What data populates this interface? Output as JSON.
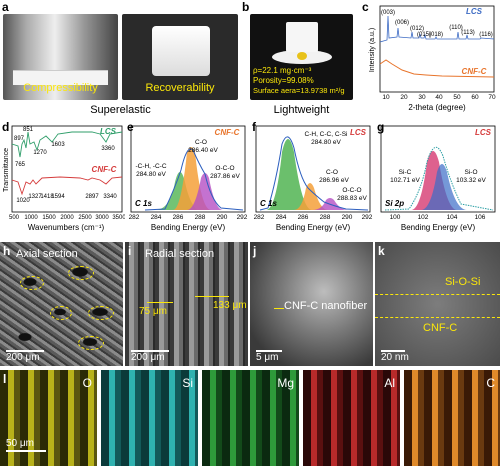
{
  "panels": {
    "a": {
      "label": "a",
      "left_caption": "Compressibility",
      "right_caption": "Recoverability",
      "group_caption": "Superelastic"
    },
    "b": {
      "label": "b",
      "line1": "ρ=22.1 mg·cm⁻³",
      "line2": "Porosity=99.08%",
      "line3": "Surface aera=13.9738 m²/g",
      "group_caption": "Lightweight"
    },
    "c": {
      "label": "c",
      "legend_top": "LCS",
      "legend_bottom": "CNF-C",
      "xlabel": "2-theta (degree)",
      "ylabel": "Intensity (a.u.)",
      "peaks": [
        "(003)",
        "(006)",
        "(012)",
        "(015)",
        "(018)",
        "(110)",
        "(113)",
        "(116)"
      ]
    },
    "d": {
      "label": "d",
      "legend_top": "LCS",
      "legend_bottom": "CNF-C",
      "xlabel": "Wavenumbers (cm⁻¹)",
      "ylabel": "Transmittance",
      "top_peaks": [
        "851",
        "897",
        "765",
        "1270",
        "1603",
        "3360"
      ],
      "bottom_peaks": [
        "1020",
        "1327",
        "1418",
        "1594",
        "2897",
        "3340"
      ]
    },
    "e": {
      "label": "e",
      "title": "CNF-C",
      "region": "C 1s",
      "xlabel": "Bending Energy (eV)",
      "peak1": "-C-H, -C-C",
      "peak1v": "284.80 eV",
      "peak2": "C-O",
      "peak2v": "286.40 eV",
      "peak3": "O-C-O",
      "peak3v": "287.86 eV"
    },
    "f": {
      "label": "f",
      "title": "LCS",
      "region": "C 1s",
      "xlabel": "Bending Energy (eV)",
      "peak1": "C-H, C-C, C-Si",
      "peak1v": "284.80 eV",
      "peak2": "C-O",
      "peak2v": "286.96 eV",
      "peak3": "O-C-O",
      "peak3v": "288.83 eV"
    },
    "g": {
      "label": "g",
      "title": "LCS",
      "region": "Si 2p",
      "xlabel": "Bending Energy (eV)",
      "peak1": "Si-C",
      "peak1v": "102.71 eV",
      "peak2": "Si-O",
      "peak2v": "103.32 eV"
    },
    "h": {
      "label": "h",
      "title": "Axial section",
      "scale": "200 μm"
    },
    "i": {
      "label": "i",
      "title": "Radial section",
      "meas1": "75 μm",
      "meas2": "133 μm",
      "scale": "200 μm"
    },
    "j": {
      "label": "j",
      "annotation": "CNF-C nanofiber",
      "scale": "5 μm"
    },
    "k": {
      "label": "k",
      "annot1": "Si-O-Si",
      "annot2": "CNF-C",
      "scale": "20 nm"
    },
    "l": {
      "label": "l",
      "scale": "50 μm",
      "maps": [
        "O",
        "Si",
        "Mg",
        "Al",
        "C"
      ]
    }
  },
  "chart_data": [
    {
      "panel": "c",
      "type": "line",
      "title": "",
      "xlabel": "2-theta (degree)",
      "ylabel": "Intensity (a.u.)",
      "xlim": [
        5,
        70
      ],
      "x_ticks": [
        10,
        20,
        30,
        40,
        50,
        60,
        70
      ],
      "series": [
        {
          "name": "LCS",
          "color": "#3d6bc4"
        },
        {
          "name": "CNF-C",
          "color": "#e8742b"
        }
      ]
    },
    {
      "panel": "d",
      "type": "line",
      "title": "",
      "xlabel": "Wavenumbers (cm⁻¹)",
      "ylabel": "Transmittance",
      "xlim": [
        500,
        3500
      ],
      "x_ticks": [
        500,
        1000,
        1500,
        2000,
        2500,
        3000,
        3500
      ],
      "series": [
        {
          "name": "LCS",
          "color": "#2f9e6a"
        },
        {
          "name": "CNF-C",
          "color": "#d53b3b"
        }
      ]
    },
    {
      "panel": "e",
      "type": "area",
      "xlabel": "Bending Energy (eV)",
      "xlim": [
        282,
        292
      ],
      "x_ticks": [
        282,
        284,
        286,
        288,
        290,
        292
      ],
      "series": [
        {
          "name": "-C-H, -C-C",
          "center": 284.8
        },
        {
          "name": "C-O",
          "center": 286.4
        },
        {
          "name": "O-C-O",
          "center": 287.86
        }
      ]
    },
    {
      "panel": "f",
      "type": "area",
      "xlabel": "Bending Energy (eV)",
      "xlim": [
        282,
        292
      ],
      "x_ticks": [
        282,
        284,
        286,
        288,
        290,
        292
      ],
      "series": [
        {
          "name": "C-H, C-C, C-Si",
          "center": 284.8
        },
        {
          "name": "C-O",
          "center": 286.96
        },
        {
          "name": "O-C-O",
          "center": 288.83
        }
      ]
    },
    {
      "panel": "g",
      "type": "area",
      "xlabel": "Bending Energy (eV)",
      "xlim": [
        99,
        107
      ],
      "x_ticks": [
        100,
        102,
        104,
        106
      ],
      "series": [
        {
          "name": "Si-C",
          "center": 102.71
        },
        {
          "name": "Si-O",
          "center": 103.32
        }
      ]
    }
  ]
}
